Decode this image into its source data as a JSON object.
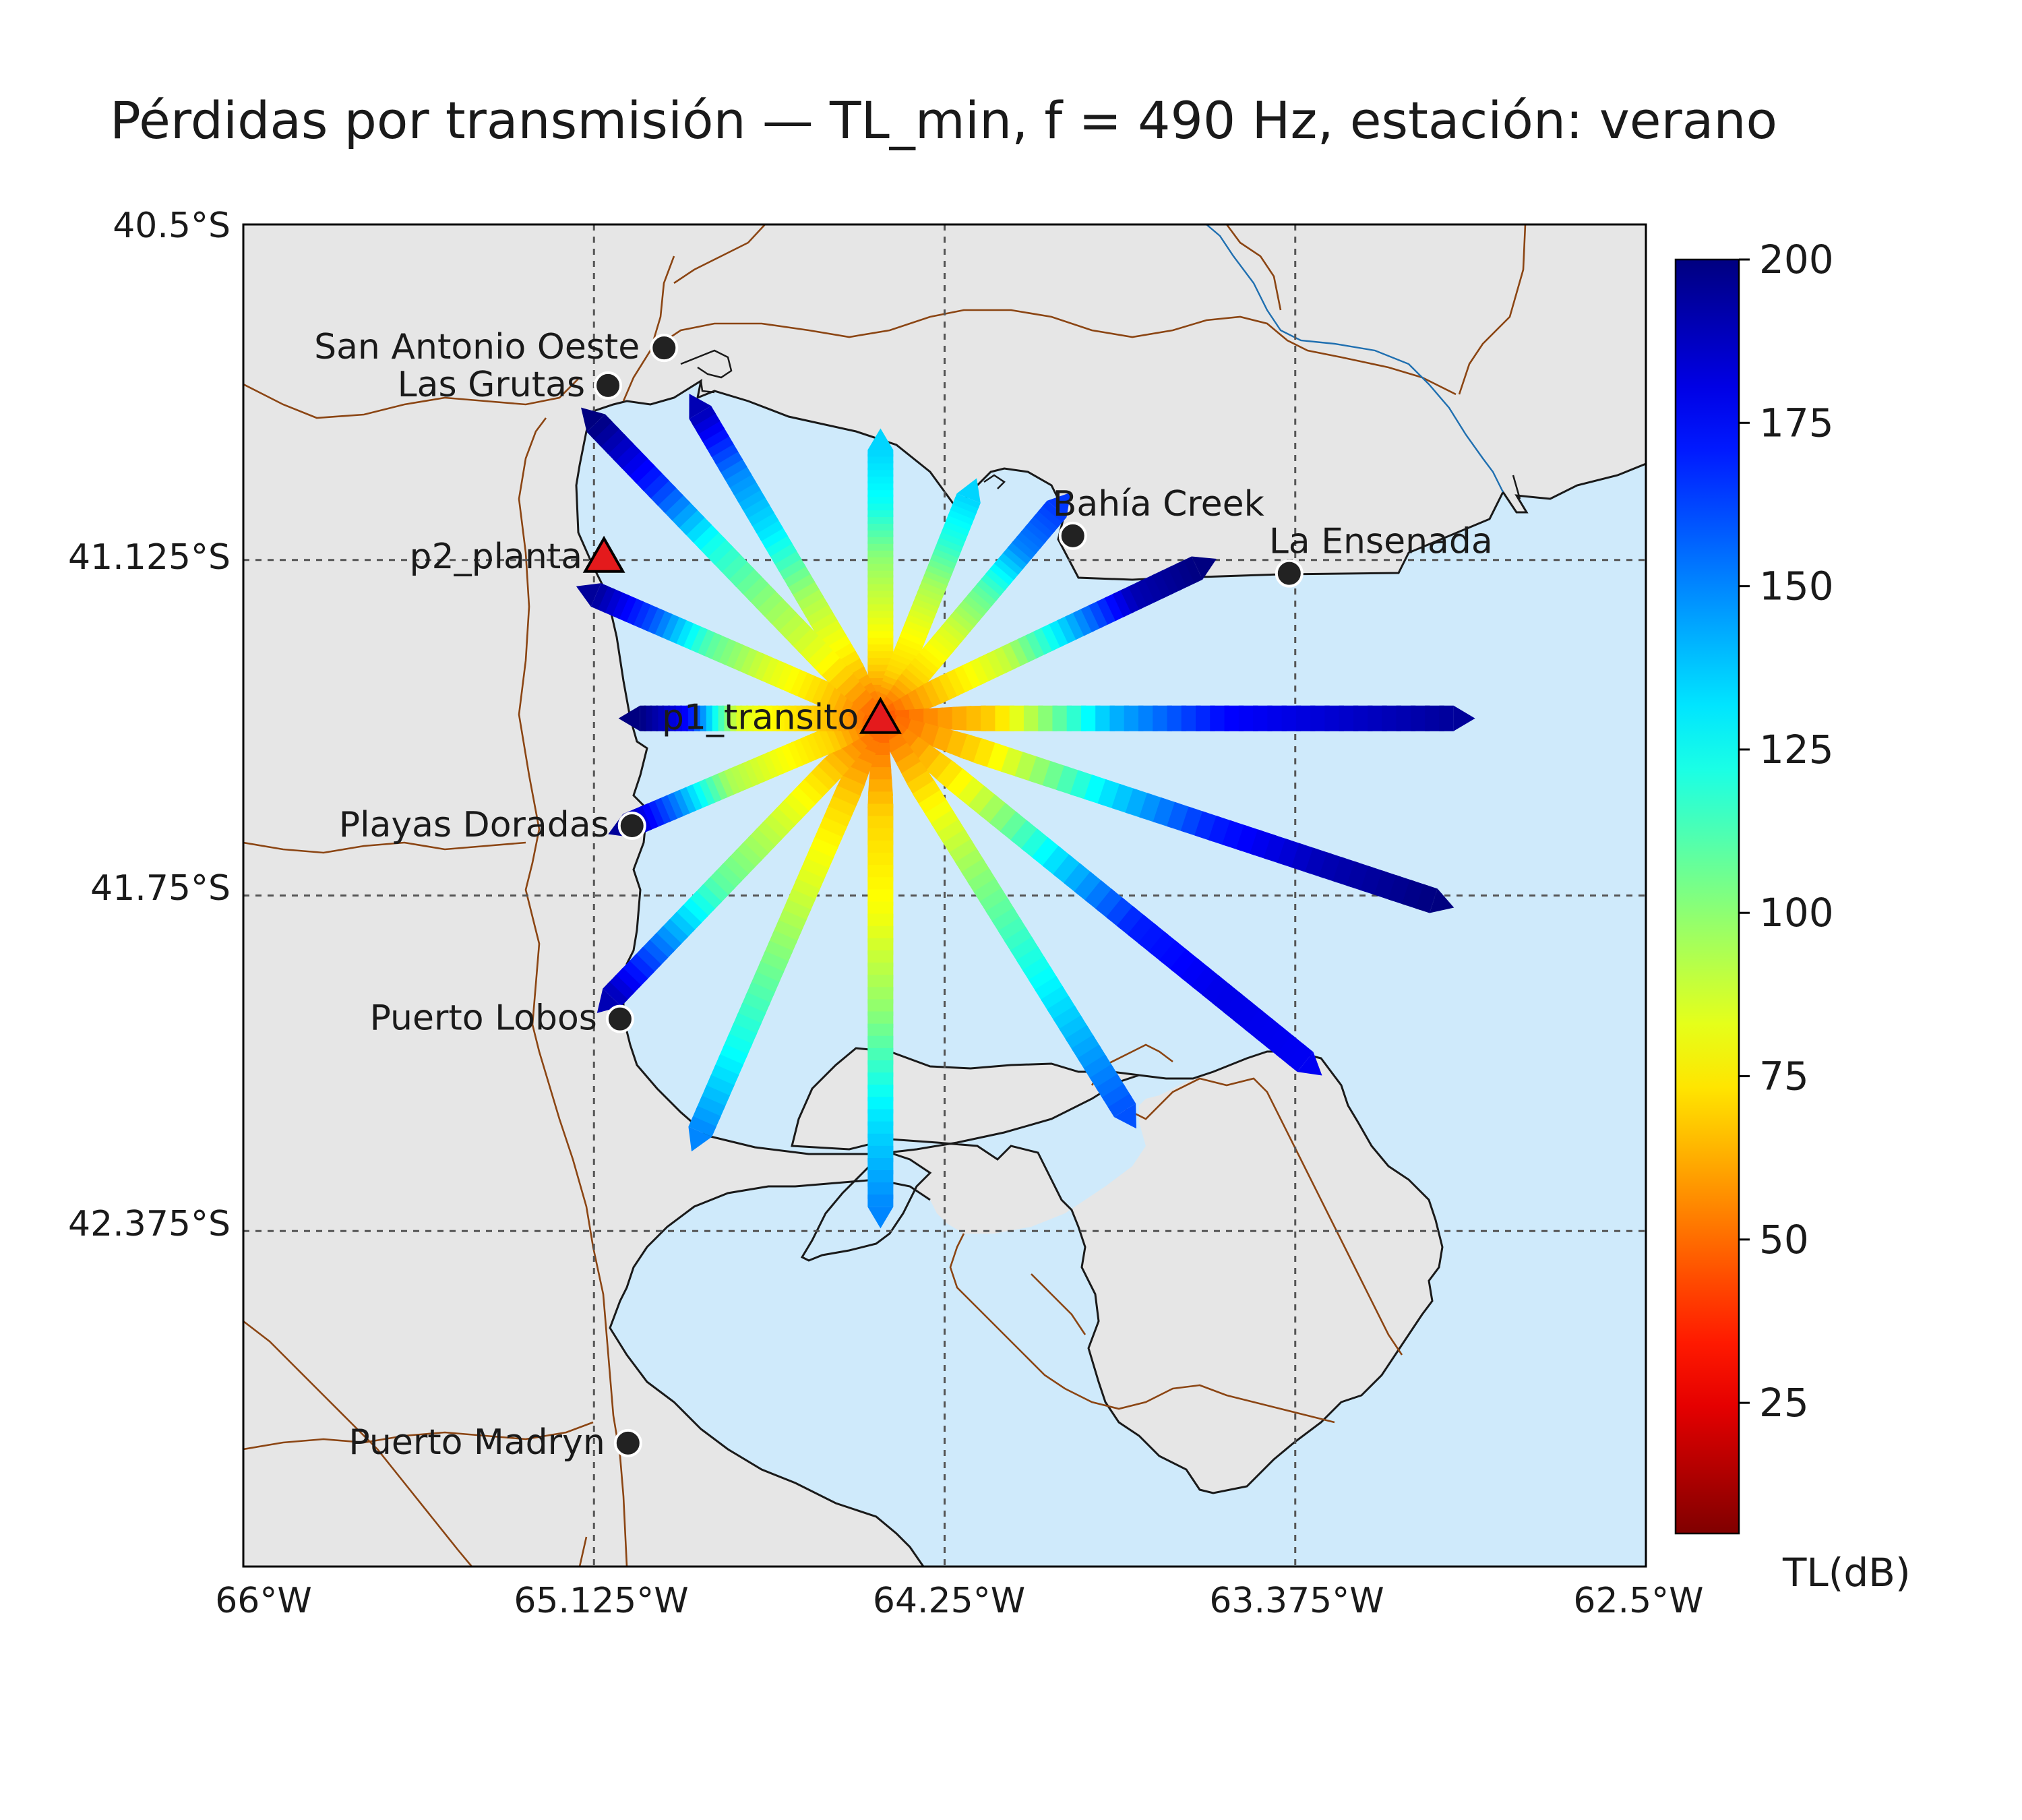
{
  "title": "Pérdidas por transmisión — TL_min, f = 490 Hz, estación: verano",
  "map": {
    "extent": {
      "lon_min": -66.0,
      "lon_max": -62.5,
      "lat_min": -43.0,
      "lat_max": -40.5
    },
    "x_ticks": [
      "66°W",
      "65.125°W",
      "64.25°W",
      "63.375°W",
      "62.5°W"
    ],
    "y_ticks": [
      "40.5°S",
      "41.125°S",
      "41.75°S",
      "42.375°S"
    ],
    "land_color": "#e6e6e6",
    "sea_color": "#cfeafb",
    "coast_color": "#1a1a1a",
    "border_color": "#8b4513",
    "river_color": "#1f6fb0"
  },
  "colorbar": {
    "label": "TL(dB)",
    "min": 5,
    "max": 200,
    "ticks": [
      "25",
      "50",
      "75",
      "100",
      "125",
      "150",
      "175",
      "200"
    ],
    "colormap": "jet_r"
  },
  "sources": [
    {
      "name": "p1_transito",
      "lon": -64.41,
      "lat": -41.42,
      "marker": "triangle",
      "color": "#e41a1c"
    },
    {
      "name": "p2_planta",
      "lon": -65.1,
      "lat": -41.12,
      "marker": "triangle",
      "color": "#e41a1c"
    }
  ],
  "cities": [
    {
      "name": "San Antonio Oeste",
      "lon": -64.95,
      "lat": -40.73
    },
    {
      "name": "Las Grutas",
      "lon": -65.09,
      "lat": -40.8
    },
    {
      "name": "Bahía Creek",
      "lon": -63.93,
      "lat": -41.08
    },
    {
      "name": "La Ensenada",
      "lon": -63.39,
      "lat": -41.15
    },
    {
      "name": "Playas Doradas",
      "lon": -65.03,
      "lat": -41.62
    },
    {
      "name": "Puerto Lobos",
      "lon": -65.06,
      "lat": -41.98
    },
    {
      "name": "Puerto Madryn",
      "lon": -65.04,
      "lat": -42.77
    }
  ],
  "chart_data": {
    "type": "map",
    "title": "Pérdidas por transmisión — TL_min, f = 490 Hz, estación: verano",
    "variable": "TL_min (dB)",
    "frequency_hz": 490,
    "season": "verano",
    "source": "p1_transito",
    "radials": [
      {
        "bearing_deg": 0,
        "end_lon": -64.41,
        "end_lat": -40.92,
        "tl_profile": [
          45,
          70,
          85,
          100,
          125,
          135
        ]
      },
      {
        "bearing_deg": 22,
        "end_lon": -64.19,
        "end_lat": -41.01,
        "tl_profile": [
          45,
          70,
          80,
          95,
          120,
          135
        ]
      },
      {
        "bearing_deg": 40,
        "end_lon": -63.97,
        "end_lat": -41.03,
        "tl_profile": [
          45,
          70,
          85,
          110,
          150,
          165
        ]
      },
      {
        "bearing_deg": 65,
        "end_lon": -63.62,
        "end_lat": -41.14,
        "tl_profile": [
          45,
          70,
          90,
          140,
          190,
          200
        ]
      },
      {
        "bearing_deg": 90,
        "end_lon": -62.98,
        "end_lat": -41.42,
        "tl_profile": [
          45,
          70,
          140,
          175,
          185,
          195
        ]
      },
      {
        "bearing_deg": 115,
        "end_lon": -63.03,
        "end_lat": -41.76,
        "tl_profile": [
          45,
          75,
          130,
          170,
          190,
          200
        ]
      },
      {
        "bearing_deg": 138,
        "end_lon": -63.35,
        "end_lat": -42.06,
        "tl_profile": [
          45,
          80,
          130,
          170,
          180,
          178
        ]
      },
      {
        "bearing_deg": 155,
        "end_lon": -63.8,
        "end_lat": -42.15,
        "tl_profile": [
          45,
          75,
          100,
          120,
          140,
          160
        ]
      },
      {
        "bearing_deg": 180,
        "end_lon": -64.41,
        "end_lat": -42.33,
        "tl_profile": [
          45,
          70,
          80,
          100,
          130,
          150
        ]
      },
      {
        "bearing_deg": 205,
        "end_lon": -64.86,
        "end_lat": -42.19,
        "tl_profile": [
          45,
          70,
          85,
          105,
          125,
          150
        ]
      },
      {
        "bearing_deg": 230,
        "end_lon": -65.08,
        "end_lat": -41.94,
        "tl_profile": [
          45,
          70,
          90,
          110,
          150,
          190
        ]
      },
      {
        "bearing_deg": 250,
        "end_lon": -65.04,
        "end_lat": -41.62,
        "tl_profile": [
          45,
          70,
          80,
          95,
          150,
          195
        ]
      },
      {
        "bearing_deg": 270,
        "end_lon": -65.01,
        "end_lat": -41.42,
        "tl_profile": [
          45,
          65,
          75,
          85,
          175,
          200
        ]
      },
      {
        "bearing_deg": 290,
        "end_lon": -65.12,
        "end_lat": -41.19,
        "tl_profile": [
          45,
          70,
          85,
          110,
          160,
          195
        ]
      },
      {
        "bearing_deg": 318,
        "end_lon": -64.86,
        "end_lat": -40.85,
        "tl_profile": [
          45,
          75,
          95,
          130,
          150,
          190
        ]
      },
      {
        "bearing_deg": 333,
        "end_lon": -65.12,
        "end_lat": -40.87,
        "tl_profile": [
          45,
          80,
          100,
          125,
          170,
          200
        ]
      }
    ]
  }
}
